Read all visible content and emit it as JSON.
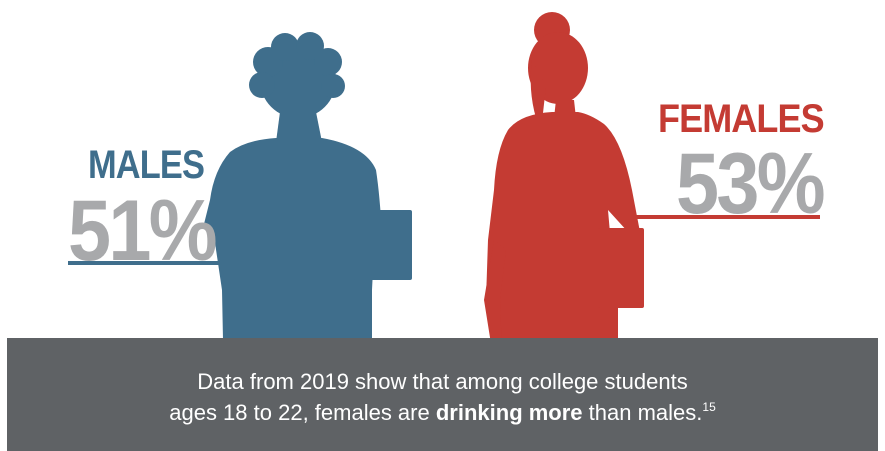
{
  "males": {
    "label": "MALES",
    "percent": "51%",
    "color": "#3f6e8c"
  },
  "females": {
    "label": "FEMALES",
    "percent": "53%",
    "color": "#c43b33"
  },
  "caption": {
    "line1": "Data from 2019 show that among college students",
    "line2_start": "ages 18 to 22, females are ",
    "line2_bold": "drinking more",
    "line2_end": " than males.",
    "footnote": "15"
  },
  "colors": {
    "banner": "#5f6265",
    "percent_text": "#a8a9ab"
  }
}
